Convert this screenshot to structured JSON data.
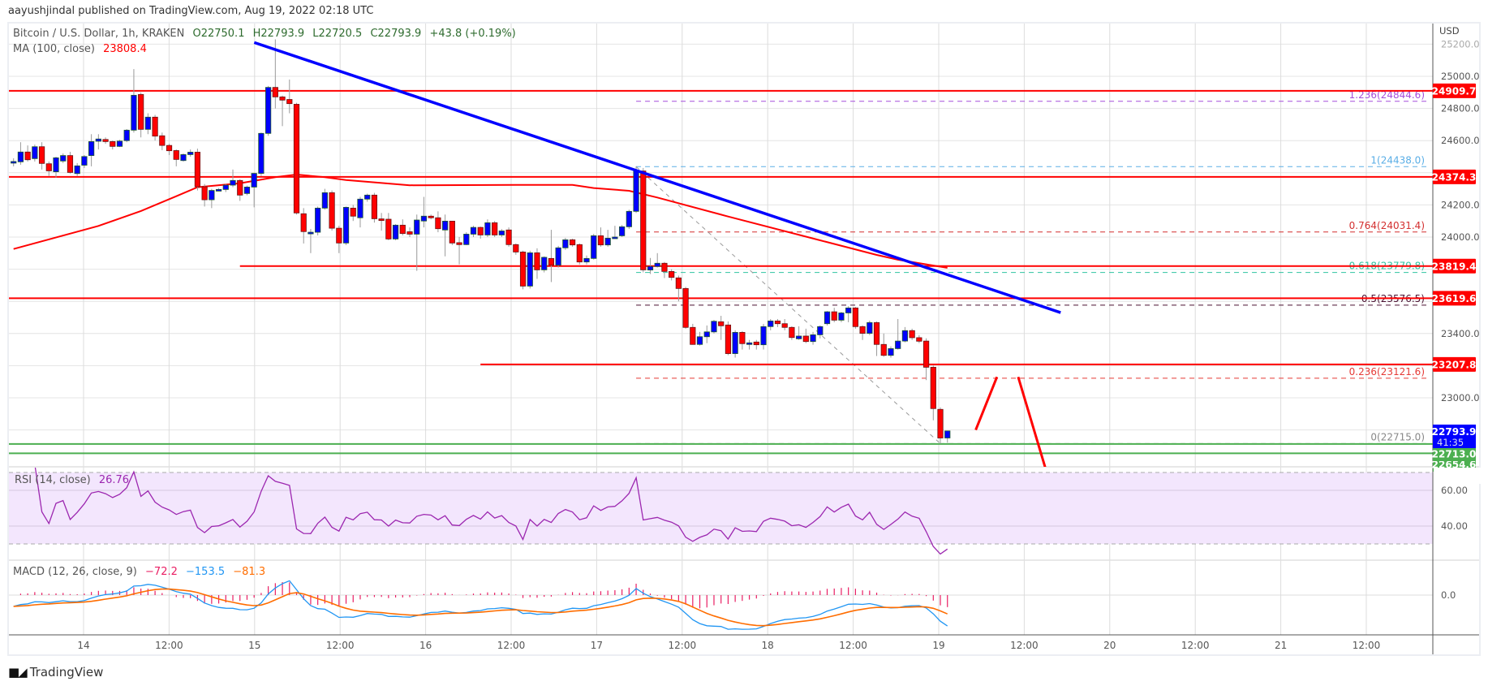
{
  "published": "aayushjindal published on TradingView.com, Aug 19, 2022 02:18 UTC",
  "legend": {
    "symbol": "Bitcoin / U.S. Dollar, 1h, KRAKEN",
    "open": "O22750.1",
    "high": "H22793.9",
    "low": "L22720.5",
    "close": "C22793.9",
    "change": "+43.8 (+0.19%)",
    "ma_label": "MA (100, close)",
    "ma_value": "23808.4",
    "rsi_label": "RSI (14, close)",
    "rsi_value": "26.76",
    "macd_label": "MACD (12, 26, close, 9)",
    "macd_hist": "−72.2",
    "macd_value": "−153.5",
    "macd_signal": "−81.3"
  },
  "logo": {
    "text": "TradingView",
    "icon": "tradingview-logo-icon"
  },
  "colors": {
    "up": "#0000ff",
    "down": "#ff0000",
    "ma": "#ff0000",
    "trendline": "#0000ff",
    "rsi": "#9c27b0",
    "macd": "#2196f3",
    "signal": "#ff6d00",
    "hist": "#e91e63",
    "support": "#4caf50",
    "level": "#ff0000",
    "last_price": "#0000ff"
  },
  "chart_data": {
    "type": "candlestick",
    "interval": "1h",
    "currency": "USD",
    "ylim": [
      22560,
      25300
    ],
    "y_ticks": [
      25200,
      25000,
      24800,
      24600,
      24200,
      24000,
      23400,
      23000
    ],
    "x_tick_labels": [
      "14",
      "12:00",
      "15",
      "12:00",
      "16",
      "12:00",
      "17",
      "12:00",
      "18",
      "12:00",
      "19",
      "12:00",
      "20",
      "12:00",
      "21",
      "12:00"
    ],
    "candles_ohlc": [
      [
        24466,
        24490,
        24440,
        24470
      ],
      [
        24468,
        24590,
        24450,
        24529
      ],
      [
        24529,
        24570,
        24470,
        24481
      ],
      [
        24488,
        24575,
        24470,
        24562
      ],
      [
        24562,
        24590,
        24420,
        24458
      ],
      [
        24456,
        24470,
        24380,
        24412
      ],
      [
        24406,
        24500,
        24370,
        24493
      ],
      [
        24473,
        24520,
        24460,
        24507
      ],
      [
        24507,
        24530,
        24395,
        24402
      ],
      [
        24395,
        24460,
        24380,
        24443
      ],
      [
        24447,
        24510,
        24430,
        24501
      ],
      [
        24507,
        24640,
        24440,
        24594
      ],
      [
        24596,
        24640,
        24545,
        24610
      ],
      [
        24607,
        24620,
        24580,
        24594
      ],
      [
        24594,
        24600,
        24545,
        24564
      ],
      [
        24564,
        24605,
        24560,
        24597
      ],
      [
        24600,
        24672,
        24590,
        24665
      ],
      [
        24665,
        25045,
        24650,
        24882
      ],
      [
        24887,
        24900,
        24620,
        24670
      ],
      [
        24670,
        24770,
        24640,
        24746
      ],
      [
        24746,
        24760,
        24600,
        24628
      ],
      [
        24630,
        24650,
        24540,
        24570
      ],
      [
        24570,
        24580,
        24510,
        24537
      ],
      [
        24538,
        24545,
        24440,
        24483
      ],
      [
        24476,
        24520,
        24470,
        24513
      ],
      [
        24513,
        24545,
        24500,
        24528
      ],
      [
        24528,
        24550,
        24290,
        24313
      ],
      [
        24313,
        24330,
        24190,
        24232
      ],
      [
        24232,
        24300,
        24180,
        24290
      ],
      [
        24292,
        24305,
        24285,
        24296
      ],
      [
        24296,
        24330,
        24280,
        24323
      ],
      [
        24323,
        24420,
        24310,
        24352
      ],
      [
        24352,
        24360,
        24225,
        24261
      ],
      [
        24271,
        24320,
        24260,
        24311
      ],
      [
        24311,
        24400,
        24185,
        24396
      ],
      [
        24396,
        24650,
        24380,
        24645
      ],
      [
        24645,
        24940,
        24630,
        24931
      ],
      [
        24931,
        25230,
        24800,
        24872
      ],
      [
        24872,
        24880,
        24690,
        24852
      ],
      [
        24856,
        24980,
        24770,
        24830
      ],
      [
        24826,
        24835,
        24140,
        24150
      ],
      [
        24145,
        24180,
        23960,
        24034
      ],
      [
        24030,
        24050,
        23900,
        24030
      ],
      [
        24030,
        24190,
        24010,
        24180
      ],
      [
        24180,
        24300,
        24170,
        24276
      ],
      [
        24276,
        24290,
        24040,
        24055
      ],
      [
        24055,
        24070,
        23900,
        23963
      ],
      [
        23963,
        24190,
        23950,
        24185
      ],
      [
        24180,
        24200,
        24100,
        24130
      ],
      [
        24120,
        24250,
        24060,
        24236
      ],
      [
        24236,
        24270,
        24220,
        24261
      ],
      [
        24261,
        24275,
        24090,
        24114
      ],
      [
        24113,
        24150,
        24040,
        24109
      ],
      [
        24111,
        24150,
        23980,
        23988
      ],
      [
        23988,
        24080,
        23980,
        24074
      ],
      [
        24074,
        24110,
        24010,
        24022
      ],
      [
        24033,
        24060,
        24000,
        24018
      ],
      [
        24018,
        24140,
        23790,
        24106
      ],
      [
        24100,
        24250,
        24060,
        24130
      ],
      [
        24130,
        24140,
        24110,
        24120
      ],
      [
        24120,
        24160,
        24030,
        24052
      ],
      [
        24044,
        24140,
        23880,
        24099
      ],
      [
        24099,
        24100,
        23950,
        23963
      ],
      [
        23965,
        24000,
        23830,
        23953
      ],
      [
        23953,
        24030,
        23950,
        24018
      ],
      [
        24018,
        24070,
        24000,
        24060
      ],
      [
        24060,
        24065,
        23990,
        24013
      ],
      [
        24013,
        24110,
        24000,
        24089
      ],
      [
        24089,
        24100,
        24000,
        24013
      ],
      [
        24013,
        24050,
        24000,
        24038
      ],
      [
        24044,
        24060,
        23940,
        23953
      ],
      [
        23953,
        23960,
        23890,
        23907
      ],
      [
        23907,
        23915,
        23675,
        23695
      ],
      [
        23695,
        23915,
        23680,
        23902
      ],
      [
        23902,
        23930,
        23740,
        23796
      ],
      [
        23796,
        23880,
        23780,
        23874
      ],
      [
        23867,
        24045,
        23720,
        23825
      ],
      [
        23825,
        23945,
        23810,
        23933
      ],
      [
        23933,
        23995,
        23920,
        23983
      ],
      [
        23983,
        23990,
        23940,
        23951
      ],
      [
        23953,
        23960,
        23830,
        23845
      ],
      [
        23845,
        23885,
        23830,
        23867
      ],
      [
        23867,
        24020,
        23860,
        24008
      ],
      [
        24008,
        24060,
        23940,
        23951
      ],
      [
        23951,
        24045,
        23940,
        23993
      ],
      [
        23995,
        24070,
        23990,
        24000
      ],
      [
        24008,
        24075,
        24000,
        24064
      ],
      [
        24064,
        24170,
        24050,
        24160
      ],
      [
        24160,
        24440,
        24150,
        24417
      ],
      [
        24411,
        24430,
        23780,
        23796
      ],
      [
        23795,
        23870,
        23770,
        23817
      ],
      [
        23817,
        23900,
        23810,
        23837
      ],
      [
        23837,
        23845,
        23745,
        23786
      ],
      [
        23786,
        23800,
        23730,
        23749
      ],
      [
        23746,
        23760,
        23600,
        23680
      ],
      [
        23680,
        23690,
        23430,
        23438
      ],
      [
        23438,
        23460,
        23330,
        23332
      ],
      [
        23332,
        23410,
        23325,
        23380
      ],
      [
        23380,
        23450,
        23340,
        23410
      ],
      [
        23410,
        23485,
        23400,
        23476
      ],
      [
        23473,
        23510,
        23360,
        23448
      ],
      [
        23453,
        23475,
        23265,
        23275
      ],
      [
        23275,
        23420,
        23250,
        23407
      ],
      [
        23407,
        23415,
        23300,
        23337
      ],
      [
        23342,
        23360,
        23300,
        23342
      ],
      [
        23347,
        23360,
        23300,
        23330
      ],
      [
        23330,
        23460,
        23300,
        23443
      ],
      [
        23443,
        23490,
        23420,
        23478
      ],
      [
        23478,
        23490,
        23440,
        23461
      ],
      [
        23461,
        23490,
        23420,
        23438
      ],
      [
        23438,
        23445,
        23360,
        23375
      ],
      [
        23367,
        23445,
        23360,
        23384
      ],
      [
        23384,
        23430,
        23340,
        23350
      ],
      [
        23350,
        23410,
        23330,
        23392
      ],
      [
        23392,
        23450,
        23370,
        23443
      ],
      [
        23461,
        23540,
        23450,
        23535
      ],
      [
        23535,
        23560,
        23470,
        23483
      ],
      [
        23483,
        23535,
        23470,
        23528
      ],
      [
        23528,
        23570,
        23470,
        23559
      ],
      [
        23559,
        23565,
        23430,
        23443
      ],
      [
        23443,
        23450,
        23360,
        23401
      ],
      [
        23401,
        23480,
        23390,
        23468
      ],
      [
        23468,
        23475,
        23260,
        23332
      ],
      [
        23332,
        23400,
        23255,
        23264
      ],
      [
        23264,
        23320,
        23250,
        23306
      ],
      [
        23306,
        23490,
        23300,
        23353
      ],
      [
        23353,
        23440,
        23345,
        23418
      ],
      [
        23418,
        23430,
        23360,
        23374
      ],
      [
        23374,
        23390,
        23340,
        23352
      ],
      [
        23353,
        23370,
        23110,
        23190
      ],
      [
        23190,
        23200,
        22860,
        22933
      ],
      [
        22928,
        22940,
        22715,
        22750
      ],
      [
        22750.1,
        22793.9,
        22720.5,
        22793.9
      ]
    ],
    "ma100_points": [
      [
        0,
        23926
      ],
      [
        12,
        24069
      ],
      [
        18,
        24162
      ],
      [
        23,
        24254
      ],
      [
        26,
        24310
      ],
      [
        32,
        24335
      ],
      [
        37,
        24372
      ],
      [
        40,
        24389
      ],
      [
        44,
        24372
      ],
      [
        47,
        24355
      ],
      [
        56,
        24322
      ],
      [
        72,
        24325
      ],
      [
        79,
        24325
      ],
      [
        82,
        24305
      ],
      [
        87,
        24288
      ],
      [
        91,
        24246
      ],
      [
        101,
        24128
      ],
      [
        114,
        23980
      ],
      [
        122,
        23889
      ],
      [
        125,
        23859
      ],
      [
        132,
        23808.4
      ]
    ],
    "horizontal_levels": [
      {
        "price": 24909.7,
        "label": "24909.7",
        "from_candle": 0
      },
      {
        "price": 24374.3,
        "label": "24374.3",
        "from_candle": 0
      },
      {
        "price": 23819.4,
        "label": "23819.4",
        "from_candle": 32
      },
      {
        "price": 23619.6,
        "label": "23619.6",
        "from_candle": 0
      },
      {
        "price": 23207.8,
        "label": "23207.8",
        "from_candle": 66
      }
    ],
    "support_levels": [
      {
        "price": 22713.0,
        "label": "22713.0"
      },
      {
        "price": 22654.6,
        "label": "22654.6"
      }
    ],
    "last_price": {
      "label": "22793.9",
      "countdown": "41:35",
      "price": 22793.9
    },
    "fibonacci": [
      {
        "ratio": "1.236",
        "price": 24844.6,
        "label": "1.236(24844.6)",
        "color": "#a64ddb"
      },
      {
        "ratio": "1",
        "price": 24438.0,
        "label": "1(24438.0)",
        "color": "#5aaee6"
      },
      {
        "ratio": "0.764",
        "price": 24031.4,
        "label": "0.764(24031.4)",
        "color": "#d32f2f"
      },
      {
        "ratio": "0.618",
        "price": 23779.8,
        "label": "0.618(23779.8)",
        "color": "#2ec4a0"
      },
      {
        "ratio": "0.5",
        "price": 23576.5,
        "label": "0.5(23576.5)",
        "color": "#4a1030"
      },
      {
        "ratio": "0.236",
        "price": 23121.6,
        "label": "0.236(23121.6)",
        "color": "#e53935"
      },
      {
        "ratio": "0",
        "price": 22715.0,
        "label": "0(22715.0)",
        "color": "#888888"
      }
    ],
    "trendline": {
      "from": [
        37,
        25180
      ],
      "to": [
        148,
        23530
      ]
    },
    "fib_diagonal": {
      "from": [
        88,
        24438.0
      ],
      "to": [
        131,
        22715.0
      ]
    },
    "projection_arrow": [
      [
        136,
        22800
      ],
      [
        139,
        23130
      ],
      [
        142,
        23130
      ],
      [
        146,
        22540
      ]
    ],
    "rsi": {
      "period": 14,
      "band": [
        30,
        70
      ],
      "ticks": [
        60,
        40
      ]
    },
    "macd": {
      "fast": 12,
      "slow": 26,
      "signal": 9,
      "ticks": [
        0
      ],
      "tick_labels": [
        "0.0"
      ]
    }
  }
}
